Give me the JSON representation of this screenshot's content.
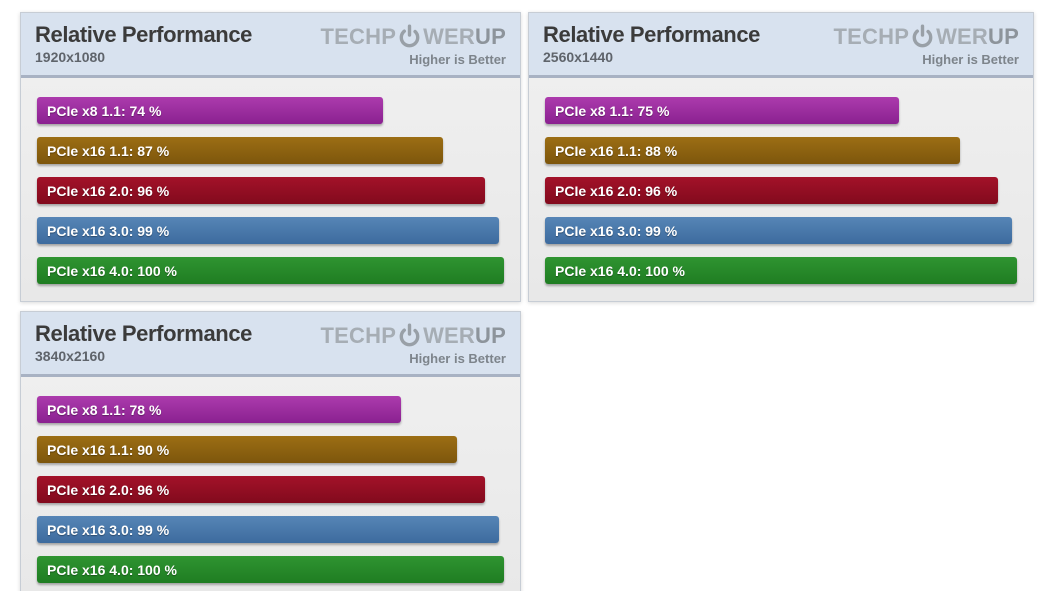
{
  "branding": {
    "logo_prefix": "TECHP",
    "logo_mid": "WER",
    "logo_suffix": "UP",
    "tagline": "Higher is Better"
  },
  "header_colors": {
    "background": "#d8e2ef",
    "border": "#a8b2c3"
  },
  "bar_styles": [
    {
      "name": "pcie-x8-1-1",
      "color_top": "#ac3bad",
      "color_bottom": "#8a2190"
    },
    {
      "name": "pcie-x16-1-1",
      "color_top": "#9c6e14",
      "color_bottom": "#7d560c"
    },
    {
      "name": "pcie-x16-2-0",
      "color_top": "#a31229",
      "color_bottom": "#820a1d"
    },
    {
      "name": "pcie-x16-3-0",
      "color_top": "#5685b6",
      "color_bottom": "#3d6b9e"
    },
    {
      "name": "pcie-x16-4-0",
      "color_top": "#2f9431",
      "color_bottom": "#1f7d22"
    }
  ],
  "chart_data": [
    {
      "type": "bar",
      "orientation": "horizontal",
      "title": "Relative Performance",
      "subtitle": "1920x1080",
      "note": "Higher is Better",
      "unit": "%",
      "xlim": [
        0,
        100
      ],
      "legend": "none",
      "grid": false,
      "categories": [
        "PCIe x8 1.1",
        "PCIe x16 1.1",
        "PCIe x16 2.0",
        "PCIe x16 3.0",
        "PCIe x16 4.0"
      ],
      "values": [
        74,
        87,
        96,
        99,
        100
      ],
      "label_format": "{category}: {value} %"
    },
    {
      "type": "bar",
      "orientation": "horizontal",
      "title": "Relative Performance",
      "subtitle": "2560x1440",
      "note": "Higher is Better",
      "unit": "%",
      "xlim": [
        0,
        100
      ],
      "legend": "none",
      "grid": false,
      "categories": [
        "PCIe x8 1.1",
        "PCIe x16 1.1",
        "PCIe x16 2.0",
        "PCIe x16 3.0",
        "PCIe x16 4.0"
      ],
      "values": [
        75,
        88,
        96,
        99,
        100
      ],
      "label_format": "{category}: {value} %"
    },
    {
      "type": "bar",
      "orientation": "horizontal",
      "title": "Relative Performance",
      "subtitle": "3840x2160",
      "note": "Higher is Better",
      "unit": "%",
      "xlim": [
        0,
        100
      ],
      "legend": "none",
      "grid": false,
      "categories": [
        "PCIe x8 1.1",
        "PCIe x16 1.1",
        "PCIe x16 2.0",
        "PCIe x16 3.0",
        "PCIe x16 4.0"
      ],
      "values": [
        78,
        90,
        96,
        99,
        100
      ],
      "label_format": "{category}: {value} %"
    }
  ]
}
